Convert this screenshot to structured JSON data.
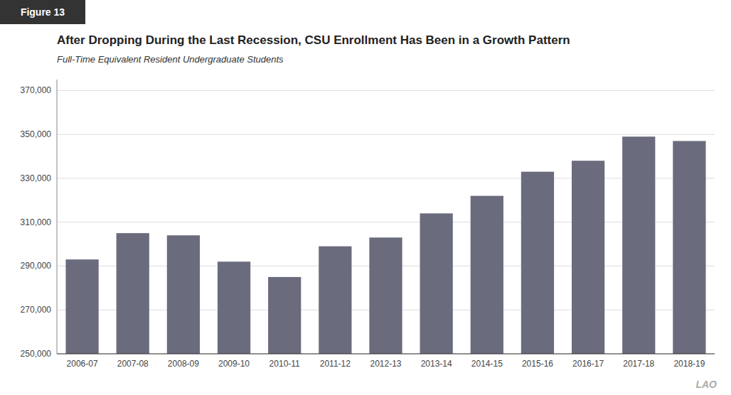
{
  "chart_data": {
    "type": "bar",
    "title": "After Dropping During the Last Recession, CSU Enrollment Has Been in a Growth Pattern",
    "subtitle": "Full-Time Equivalent Resident Undergraduate Students",
    "annotations": [
      "Figure 13",
      "LAO"
    ],
    "categories": [
      "2006-07",
      "2007-08",
      "2008-09",
      "2009-10",
      "2010-11",
      "2011-12",
      "2012-13",
      "2013-14",
      "2014-15",
      "2015-16",
      "2016-17",
      "2017-18",
      "2018-19"
    ],
    "values": [
      293000,
      305000,
      304000,
      292000,
      285000,
      299000,
      303000,
      314000,
      322000,
      333000,
      338000,
      349000,
      347000
    ],
    "color": "#6b6b7e",
    "ylim": [
      250000,
      375000
    ],
    "yticks": [
      {
        "value": 250000,
        "label": "250,000"
      },
      {
        "value": 270000,
        "label": "270,000"
      },
      {
        "value": 290000,
        "label": "290,000"
      },
      {
        "value": 310000,
        "label": "310,000"
      },
      {
        "value": 330000,
        "label": "330,000"
      },
      {
        "value": 350000,
        "label": "350,000"
      },
      {
        "value": 370000,
        "label": "370,000"
      }
    ],
    "grid": true
  }
}
